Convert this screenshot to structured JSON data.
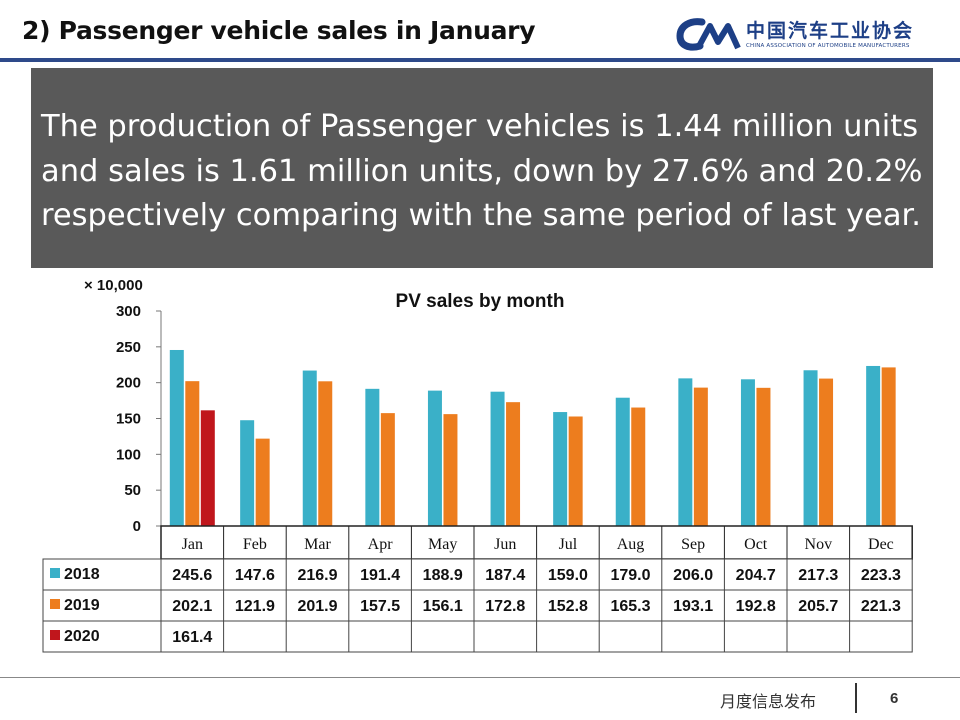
{
  "slide": {
    "title": "2) Passenger vehicle sales in January",
    "summary": "The production of Passenger vehicles is 1.44 million units and sales is 1.61 million units, down by 27.6% and 20.2% respectively comparing with the same period of last year.",
    "footer_label": "月度信息发布",
    "page_number": "6"
  },
  "logo": {
    "mark_text": "CAAM",
    "cn_name": "中国汽车工业协会",
    "en_name": "CHINA ASSOCIATION OF AUTOMOBILE MANUFACTURERS"
  },
  "colors": {
    "s2018": "#3ab0c8",
    "s2019": "#ed7d1e",
    "s2020": "#c0161c",
    "banner": "#595959",
    "brand": "#1d3f86"
  },
  "chart_data": {
    "type": "bar",
    "title": "PV sales by month",
    "unit_label": "× 10,000",
    "categories": [
      "Jan",
      "Feb",
      "Mar",
      "Apr",
      "May",
      "Jun",
      "Jul",
      "Aug",
      "Sep",
      "Oct",
      "Nov",
      "Dec"
    ],
    "ylim": [
      0,
      300
    ],
    "yticks": [
      0,
      50,
      100,
      150,
      200,
      250,
      300
    ],
    "series": [
      {
        "name": "2018",
        "values": [
          245.6,
          147.6,
          216.9,
          191.4,
          188.9,
          187.4,
          159.0,
          179.0,
          206.0,
          204.7,
          217.3,
          223.3
        ]
      },
      {
        "name": "2019",
        "values": [
          202.1,
          121.9,
          201.9,
          157.5,
          156.1,
          172.8,
          152.8,
          165.3,
          193.1,
          192.8,
          205.7,
          221.3
        ]
      },
      {
        "name": "2020",
        "values": [
          161.4,
          null,
          null,
          null,
          null,
          null,
          null,
          null,
          null,
          null,
          null,
          null
        ]
      }
    ]
  }
}
